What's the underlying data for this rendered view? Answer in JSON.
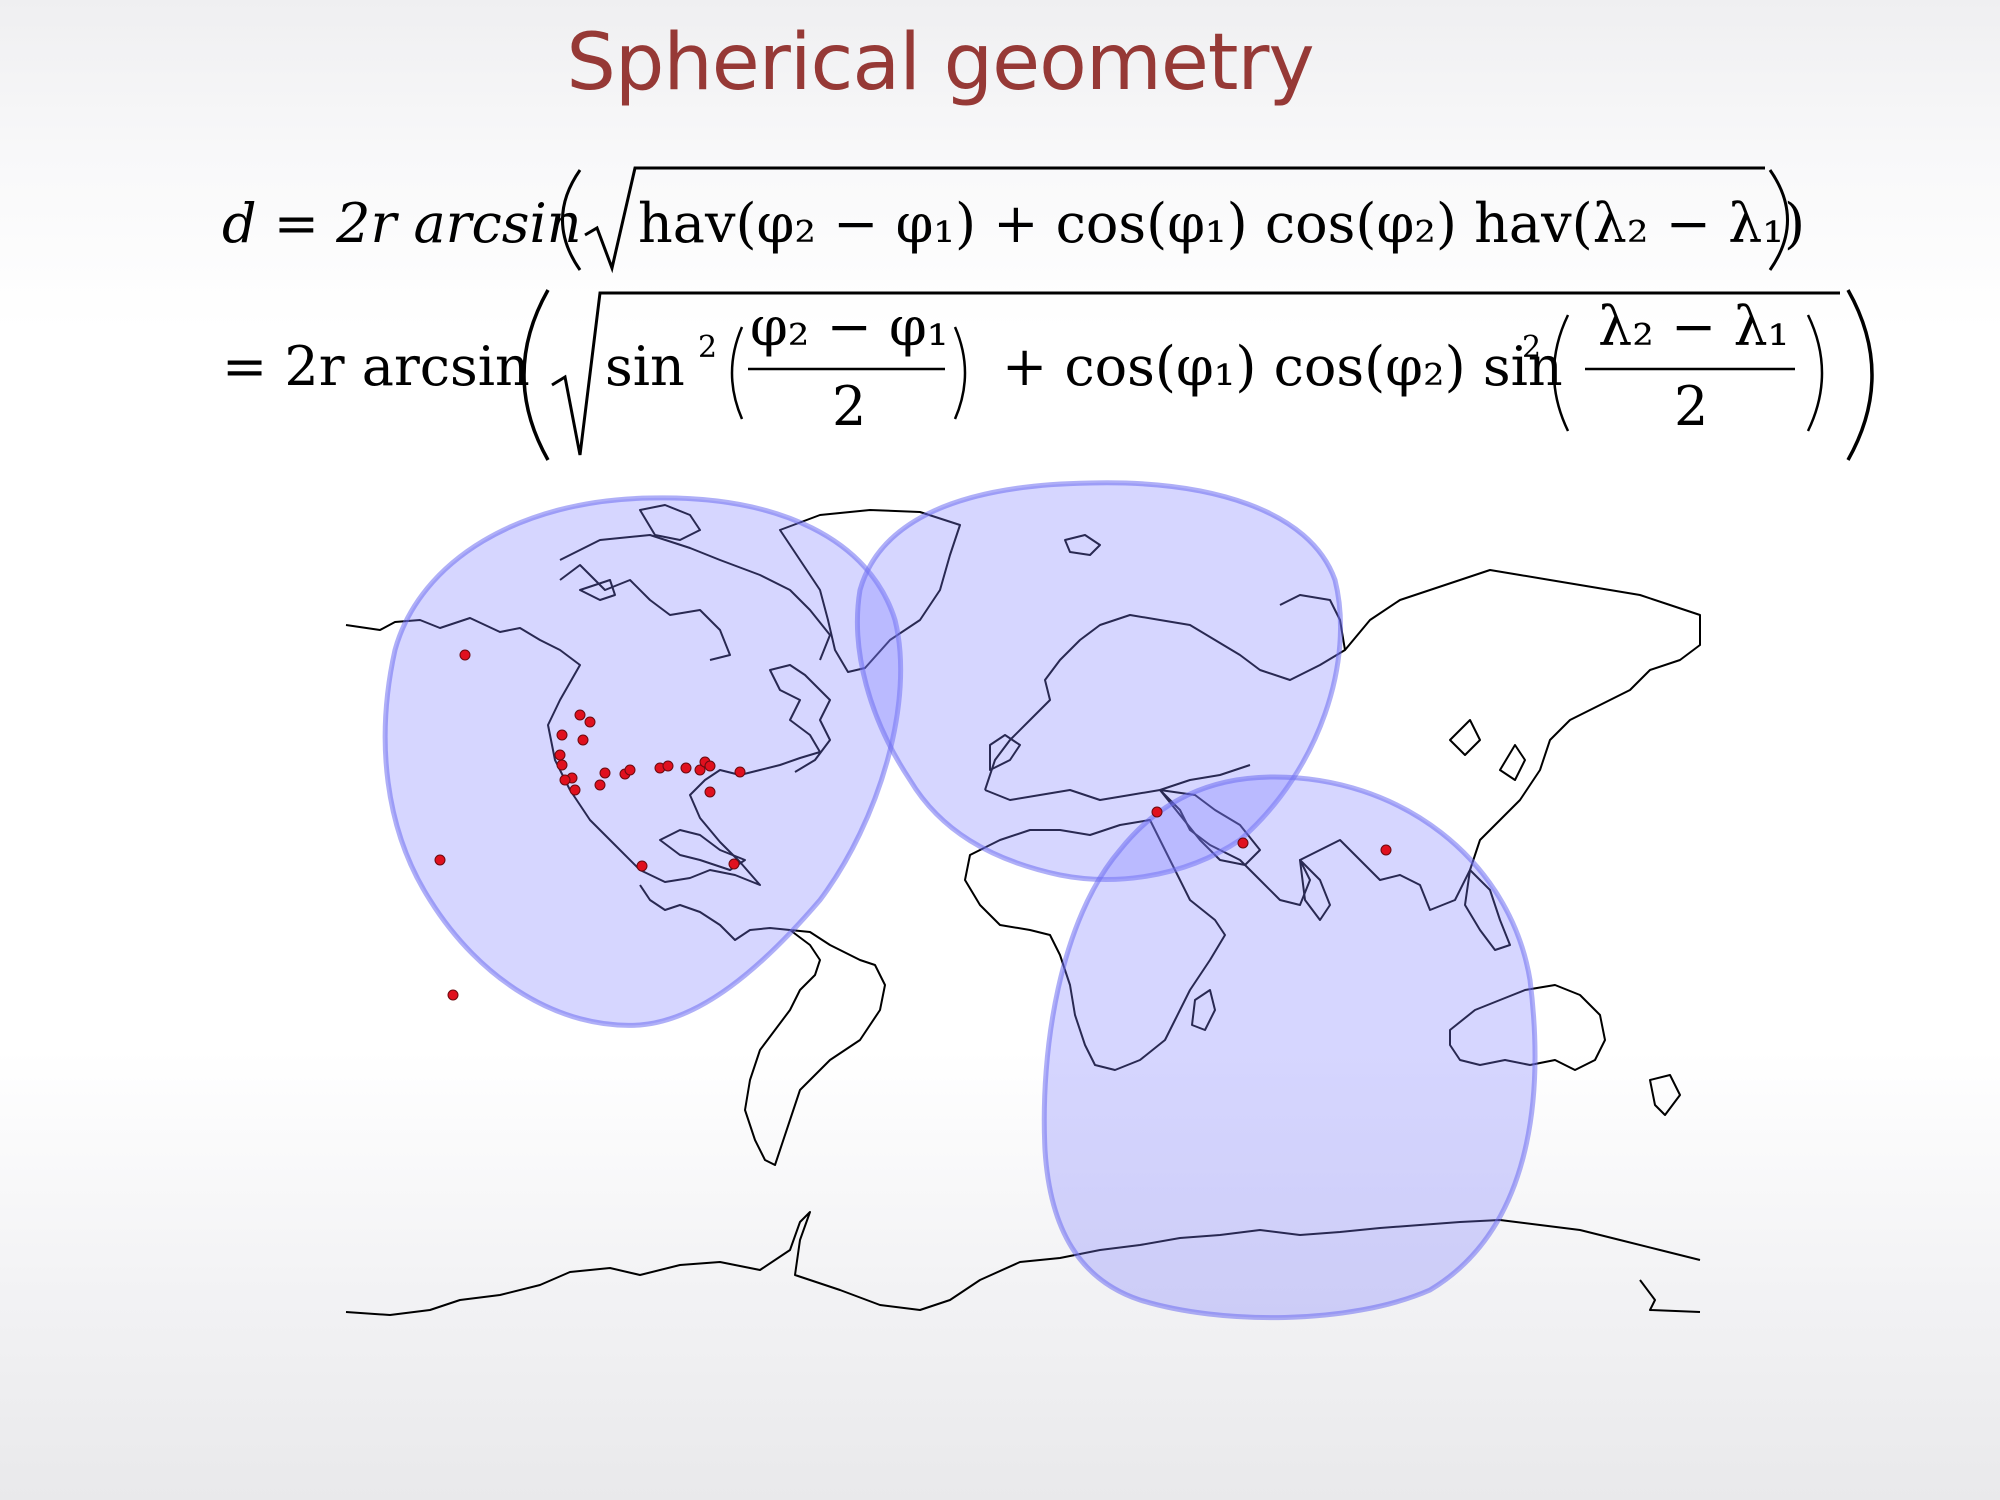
{
  "slide": {
    "title": "Spherical geometry"
  },
  "formula": {
    "line1": {
      "lhs": "d = 2r arcsin",
      "sqrt_body": "hav(φ₂ − φ₁) + cos(φ₁) cos(φ₂) hav(λ₂ − λ₁)"
    },
    "line2": {
      "lhs": "= 2r arcsin",
      "sin_a": "sin",
      "frac_a_num": "φ₂ − φ₁",
      "frac_a_den": "2",
      "mid": "+ cos(φ₁) cos(φ₂) sin",
      "frac_b_num": "λ₂ − λ₁",
      "frac_b_den": "2",
      "sup": "2"
    }
  },
  "map": {
    "colors": {
      "coastline": "#000000",
      "coverage_fill": "#8080ff",
      "city_marker": "#e0101e"
    },
    "coverage_regions": 3,
    "city_markers": 28
  }
}
